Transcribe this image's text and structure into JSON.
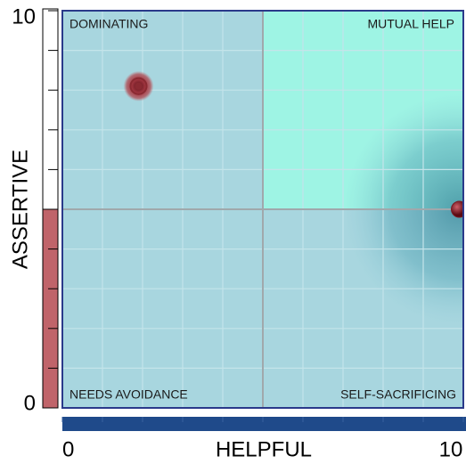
{
  "chart_data": {
    "type": "scatter",
    "x_label": "HELPFUL",
    "y_label": "ASSERTIVE",
    "xlim": [
      0,
      10
    ],
    "ylim": [
      0,
      10
    ],
    "xticks": [
      0,
      10
    ],
    "yticks": [
      0,
      10
    ],
    "xgrid": [
      0,
      1,
      2,
      3,
      4,
      5,
      6,
      7,
      8,
      9,
      10
    ],
    "ygrid": [
      0,
      1,
      2,
      3,
      4,
      5,
      6,
      7,
      8,
      9,
      10
    ],
    "divider": {
      "x": 5,
      "y": 5
    },
    "quadrants": {
      "top_left": "DOMINATING",
      "top_right": "MUTUAL HELP",
      "bottom_left": "NEEDS AVOIDANCE",
      "bottom_right": "SELF-SACRIFICING"
    },
    "meters": {
      "x": 10,
      "y": 5
    },
    "series": [
      {
        "x": [
          1.9,
          9.9
        ],
        "values": [
          8.1,
          5.0
        ],
        "colors": [
          "#8a2a32",
          "#7a1a22"
        ]
      }
    ]
  }
}
